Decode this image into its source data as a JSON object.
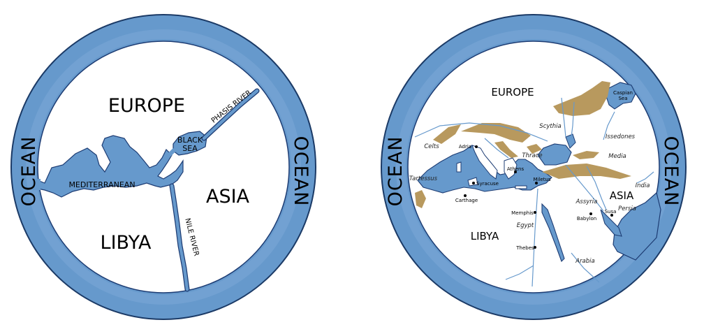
{
  "colors": {
    "ocean": "#6699cc",
    "ring_outline": "#1b3a66",
    "water_outline": "#1d3c73",
    "land": "#ffffff",
    "mountains": "#b8995e",
    "text": "#000000"
  },
  "map_left": {
    "ocean_left": "OCEAN",
    "ocean_right": "OCEAN",
    "europe": "EUROPE",
    "asia": "ASIA",
    "libya": "LIBYA",
    "mediterranean": "MEDITERRANEAN",
    "black_sea_line1": "BLACK",
    "black_sea_line2": "SEA",
    "phasis_river": "PHASIS RIVER",
    "nile_river": "NILE RIVER"
  },
  "map_right": {
    "ocean_left": "OCEAN",
    "ocean_right": "OCEAN",
    "europe": "EUROPE",
    "asia": "ASIA",
    "libya": "LIBYA",
    "caspian_line1": "Caspian",
    "caspian_line2": "Sea",
    "scythia": "Scythia",
    "issedones": "Issedones",
    "celts": "Celts",
    "adria": "Adria",
    "thrace": "Thrace",
    "media": "Media",
    "athens": "Athens",
    "tartessus": "Tartessus",
    "syracuse": "Syracuse",
    "miletus": "Miletus",
    "india": "India",
    "carthage": "Carthage",
    "assyria": "Assyria",
    "persia": "Persia",
    "susa": "Susa",
    "babylon": "Babylon",
    "memphis": "Memphis",
    "egypt": "Egypt",
    "thebes": "Thebes",
    "arabia": "Arabia"
  }
}
